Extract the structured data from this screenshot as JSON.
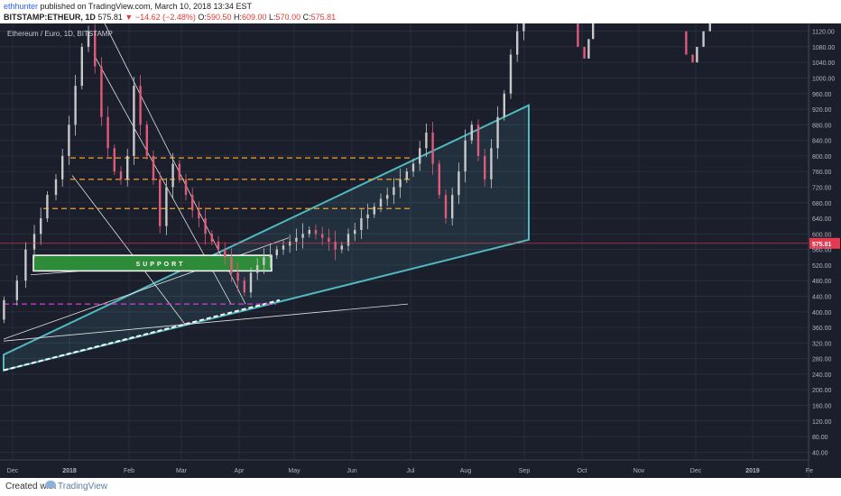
{
  "header": {
    "author": "ethhunter",
    "published": "published on TradingView.com, March 10, 2018 13:34 EST",
    "symbol": "BITSTAMP:ETHEUR, 1D",
    "last": "575.81",
    "change": "−14.62 (−2.48%)",
    "open_label": "O:",
    "open": "590.50",
    "high_label": "H:",
    "high": "609.00",
    "low_label": "L:",
    "low": "570.00",
    "close_label": "C:",
    "close": "575.81"
  },
  "footer": {
    "created": "Created with",
    "brand": "TradingView"
  },
  "colors": {
    "background": "#1b1e2b",
    "grid": "#2a2e3d",
    "up": "#c8c8c8",
    "down": "#e05a7a",
    "cyan": "#4fb8c0",
    "orange": "#f0a030",
    "magenta": "#d040d0",
    "price_badge": "#e53950",
    "support_box": "#2e8b3a"
  },
  "chart_data": {
    "type": "candlestick",
    "title": "Ethereum / Euro, 1D, BITSTAMP",
    "ylim": [
      20,
      1140
    ],
    "y_ticks": [
      "1120.00",
      "1080.00",
      "1040.00",
      "1000.00",
      "960.00",
      "920.00",
      "880.00",
      "840.00",
      "800.00",
      "760.00",
      "720.00",
      "680.00",
      "640.00",
      "600.00",
      "560.00",
      "520.00",
      "480.00",
      "440.00",
      "400.00",
      "360.00",
      "320.00",
      "280.00",
      "240.00",
      "200.00",
      "160.00",
      "120.00",
      "80.00",
      "40.00"
    ],
    "x_ticks": [
      "Dec",
      "2018",
      "Feb",
      "Mar",
      "Apr",
      "May",
      "Jun",
      "Jul",
      "Aug",
      "Sep",
      "Oct",
      "Nov",
      "Dec",
      "2019",
      "Fe"
    ],
    "price_label": "575.81",
    "support_label": "SUPPORT",
    "orange_levels": [
      795,
      740,
      665
    ],
    "magenta_level": 420,
    "price_path": [
      [
        0,
        380
      ],
      [
        6,
        430
      ],
      [
        10,
        480
      ],
      [
        14,
        560
      ],
      [
        17,
        600
      ],
      [
        20,
        640
      ],
      [
        24,
        700
      ],
      [
        27,
        740
      ],
      [
        30,
        800
      ],
      [
        33,
        880
      ],
      [
        36,
        980
      ],
      [
        39,
        1080
      ],
      [
        42,
        1120
      ],
      [
        45,
        1030
      ],
      [
        48,
        900
      ],
      [
        51,
        820
      ],
      [
        54,
        760
      ],
      [
        57,
        740
      ],
      [
        60,
        800
      ],
      [
        63,
        980
      ],
      [
        66,
        880
      ],
      [
        69,
        800
      ],
      [
        72,
        740
      ],
      [
        75,
        620
      ],
      [
        78,
        720
      ],
      [
        81,
        780
      ],
      [
        84,
        740
      ],
      [
        87,
        700
      ],
      [
        90,
        660
      ],
      [
        93,
        640
      ],
      [
        96,
        600
      ],
      [
        99,
        580
      ],
      [
        102,
        560
      ],
      [
        105,
        540
      ],
      [
        108,
        500
      ],
      [
        111,
        480
      ],
      [
        114,
        450
      ],
      [
        117,
        500
      ],
      [
        120,
        520
      ],
      [
        123,
        540
      ],
      [
        126,
        545
      ],
      [
        129,
        560
      ],
      [
        132,
        570
      ],
      [
        135,
        580
      ],
      [
        138,
        590
      ],
      [
        141,
        600
      ],
      [
        144,
        610
      ],
      [
        147,
        600
      ],
      [
        150,
        590
      ],
      [
        153,
        580
      ],
      [
        156,
        560
      ],
      [
        159,
        570
      ],
      [
        162,
        600
      ],
      [
        165,
        610
      ],
      [
        168,
        640
      ],
      [
        171,
        650
      ],
      [
        174,
        670
      ],
      [
        177,
        690
      ],
      [
        180,
        700
      ],
      [
        183,
        720
      ],
      [
        186,
        740
      ],
      [
        189,
        760
      ],
      [
        192,
        780
      ],
      [
        195,
        820
      ],
      [
        198,
        860
      ],
      [
        201,
        780
      ],
      [
        204,
        700
      ],
      [
        207,
        640
      ],
      [
        210,
        700
      ],
      [
        213,
        760
      ],
      [
        216,
        840
      ],
      [
        219,
        880
      ],
      [
        222,
        800
      ],
      [
        225,
        740
      ],
      [
        228,
        820
      ],
      [
        231,
        900
      ],
      [
        234,
        960
      ],
      [
        237,
        1060
      ],
      [
        240,
        1120
      ],
      [
        243,
        1140
      ]
    ],
    "late_fragments": [
      [
        [
          265,
          1140
        ],
        [
          268,
          1080
        ],
        [
          270,
          1050
        ],
        [
          272,
          1100
        ],
        [
          274,
          1140
        ]
      ],
      [
        [
          315,
          1120
        ],
        [
          318,
          1060
        ],
        [
          320,
          1040
        ],
        [
          323,
          1080
        ],
        [
          326,
          1120
        ],
        [
          328,
          1140
        ]
      ]
    ]
  }
}
